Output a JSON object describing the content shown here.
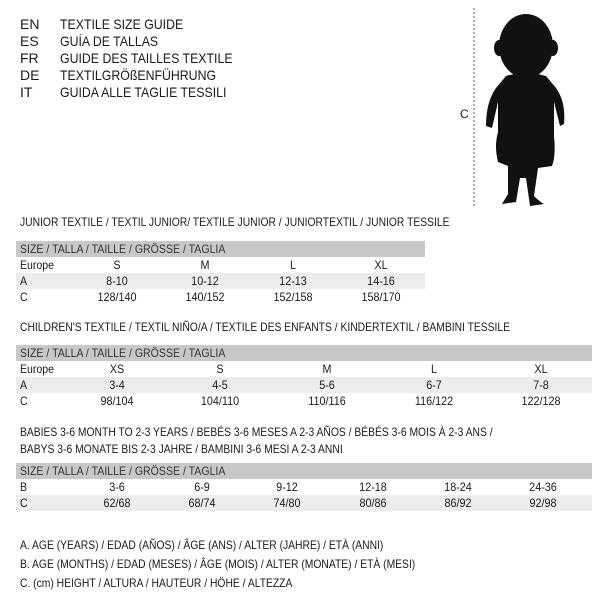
{
  "title_block": [
    {
      "code": "EN",
      "text": "TEXTILE SIZE GUIDE"
    },
    {
      "code": "ES",
      "text": "GUÍA DE TALLAS"
    },
    {
      "code": "FR",
      "text": "GUIDE DES TAILLES TEXTILE"
    },
    {
      "code": "DE",
      "text": "TEXTILGRÖßENFÜHRUNG"
    },
    {
      "code": "IT",
      "text": "GUIDA ALLE TAGLIE TESSILI"
    }
  ],
  "figure": {
    "label": "C",
    "icon": "baby-silhouette"
  },
  "size_header": "SIZE / TALLA / TAILLE / GRÖSSE / TAGLIA",
  "junior": {
    "title": "JUNIOR TEXTILE / TEXTIL JUNIOR/ TEXTILE JUNIOR / JUNIORTEXTIL / JUNIOR TESSILE",
    "rows": [
      {
        "label": "Europe",
        "cells": [
          "S",
          "M",
          "L",
          "XL"
        ]
      },
      {
        "label": "A",
        "cells": [
          "8-10",
          "10-12",
          "12-13",
          "14-16"
        ]
      },
      {
        "label": "C",
        "cells": [
          "128/140",
          "140/152",
          "152/158",
          "158/170"
        ]
      }
    ]
  },
  "children": {
    "title": "CHILDREN'S TEXTILE / TEXTIL NIÑO/A / TEXTILE DES ENFANTS / KINDERTEXTIL / BAMBINI TESSILE",
    "rows": [
      {
        "label": "Europe",
        "cells": [
          "XS",
          "S",
          "M",
          "L",
          "XL"
        ]
      },
      {
        "label": "A",
        "cells": [
          "3-4",
          "4-5",
          "5-6",
          "6-7",
          "7-8"
        ]
      },
      {
        "label": "C",
        "cells": [
          "98/104",
          "104/110",
          "110/116",
          "116/122",
          "122/128"
        ]
      }
    ]
  },
  "babies": {
    "title_line1": "BABIES 3-6 MONTH TO 2-3 YEARS / BEBÉS 3-6 MESES A 2-3 AÑOS / BÉBÉS 3-6 MOIS À 2-3 ANS /",
    "title_line2": "BABYS 3-6 MONATE BIS 2-3 JAHRE / BAMBINI 3-6 MESI A 2-3 ANNI",
    "rows": [
      {
        "label": "B",
        "cells": [
          "3-6",
          "6-9",
          "9-12",
          "12-18",
          "18-24",
          "24-36"
        ]
      },
      {
        "label": "C",
        "cells": [
          "62/68",
          "68/74",
          "74/80",
          "80/86",
          "86/92",
          "92/98"
        ]
      }
    ]
  },
  "legend": [
    "A. AGE (YEARS) / EDAD (AÑOS) / ÂGE (ANS) / ALTER (JAHRE) / ETÀ (ANNI)",
    "B. AGE (MONTHS) / EDAD (MESES) / ÂGE (MOIS) / ALTER (MONATE) / ETÀ (MESI)",
    "C. (cm) HEIGHT / ALTURA / HAUTEUR / HÖHE / ALTEZZA"
  ]
}
